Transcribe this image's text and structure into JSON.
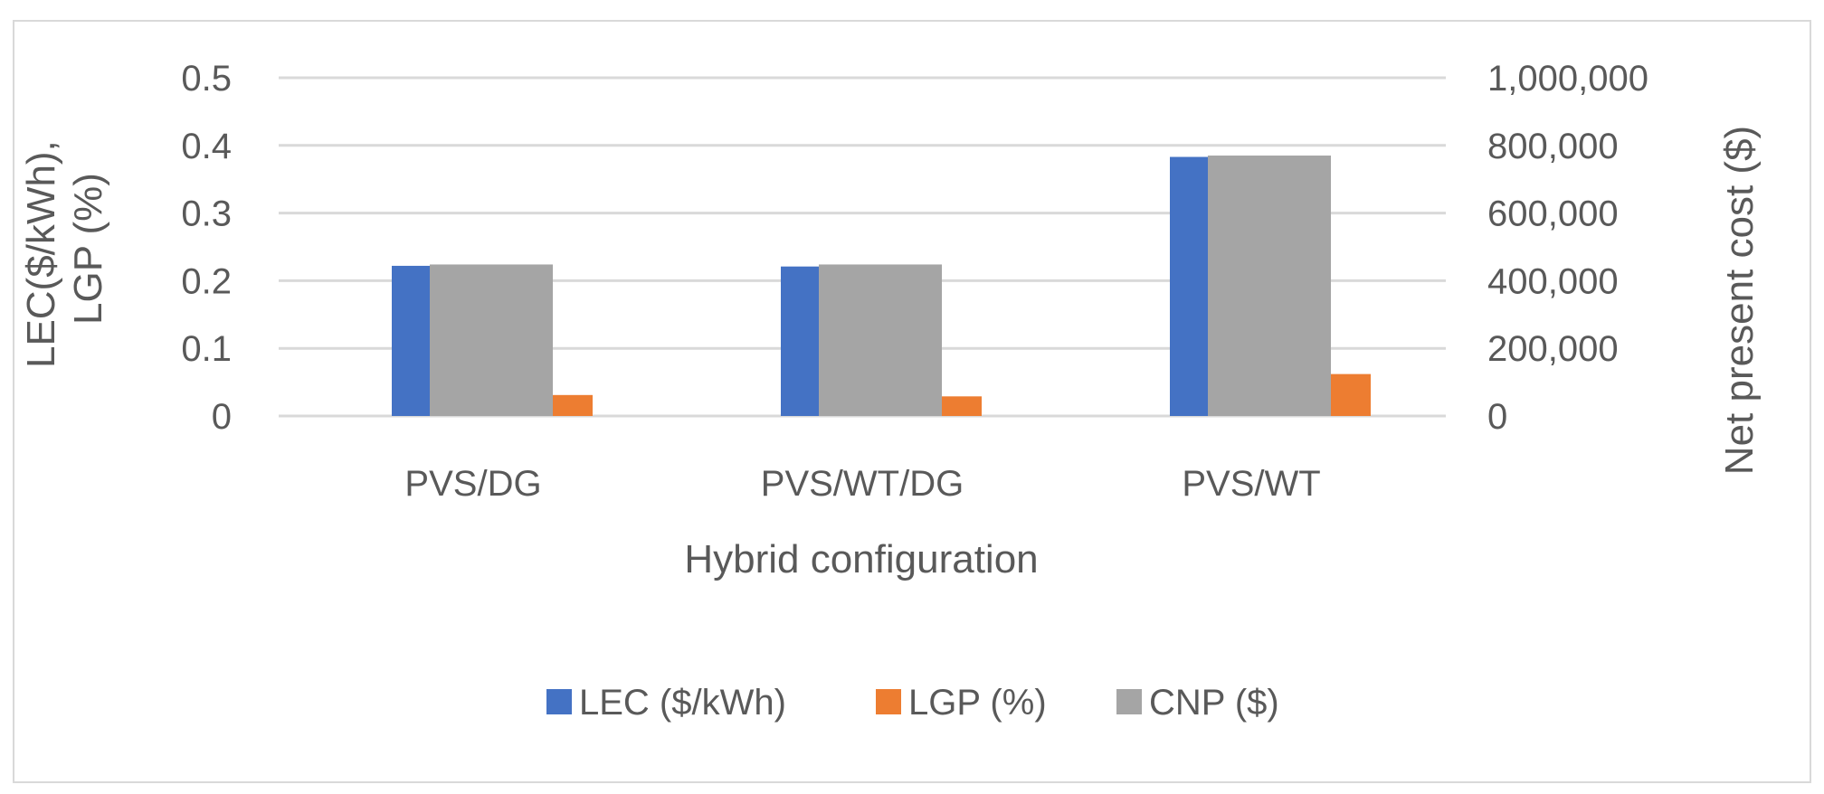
{
  "chart_data": {
    "type": "bar",
    "title": "",
    "categories": [
      "PVS/DG",
      "PVS/WT/DG",
      "PVS/WT"
    ],
    "xlabel": "Hybrid configuration",
    "ylabel_left": [
      "LEC($/kWh),",
      "LGP (%)"
    ],
    "ylabel_right": "Net present cost ($)",
    "ylim_left": [
      0,
      0.5
    ],
    "ylim_right": [
      0,
      1000000
    ],
    "yticks_left": [
      "0",
      "0.1",
      "0.2",
      "0.3",
      "0.4",
      "0.5"
    ],
    "yticks_right": [
      "0",
      "200,000",
      "400,000",
      "600,000",
      "800,000",
      "1,000,000"
    ],
    "grid": true,
    "legend_position": "bottom",
    "series": [
      {
        "name": "LEC ($/kWh)",
        "axis": "left",
        "color": "#4472c4",
        "values": [
          0.222,
          0.221,
          0.383
        ]
      },
      {
        "name": "LGP (%)",
        "axis": "left",
        "color": "#ed7d31",
        "values": [
          0.031,
          0.029,
          0.062
        ]
      },
      {
        "name": "CNP ($)",
        "axis": "right",
        "color": "#a5a5a5",
        "values": [
          448000,
          448000,
          770000
        ]
      }
    ]
  }
}
